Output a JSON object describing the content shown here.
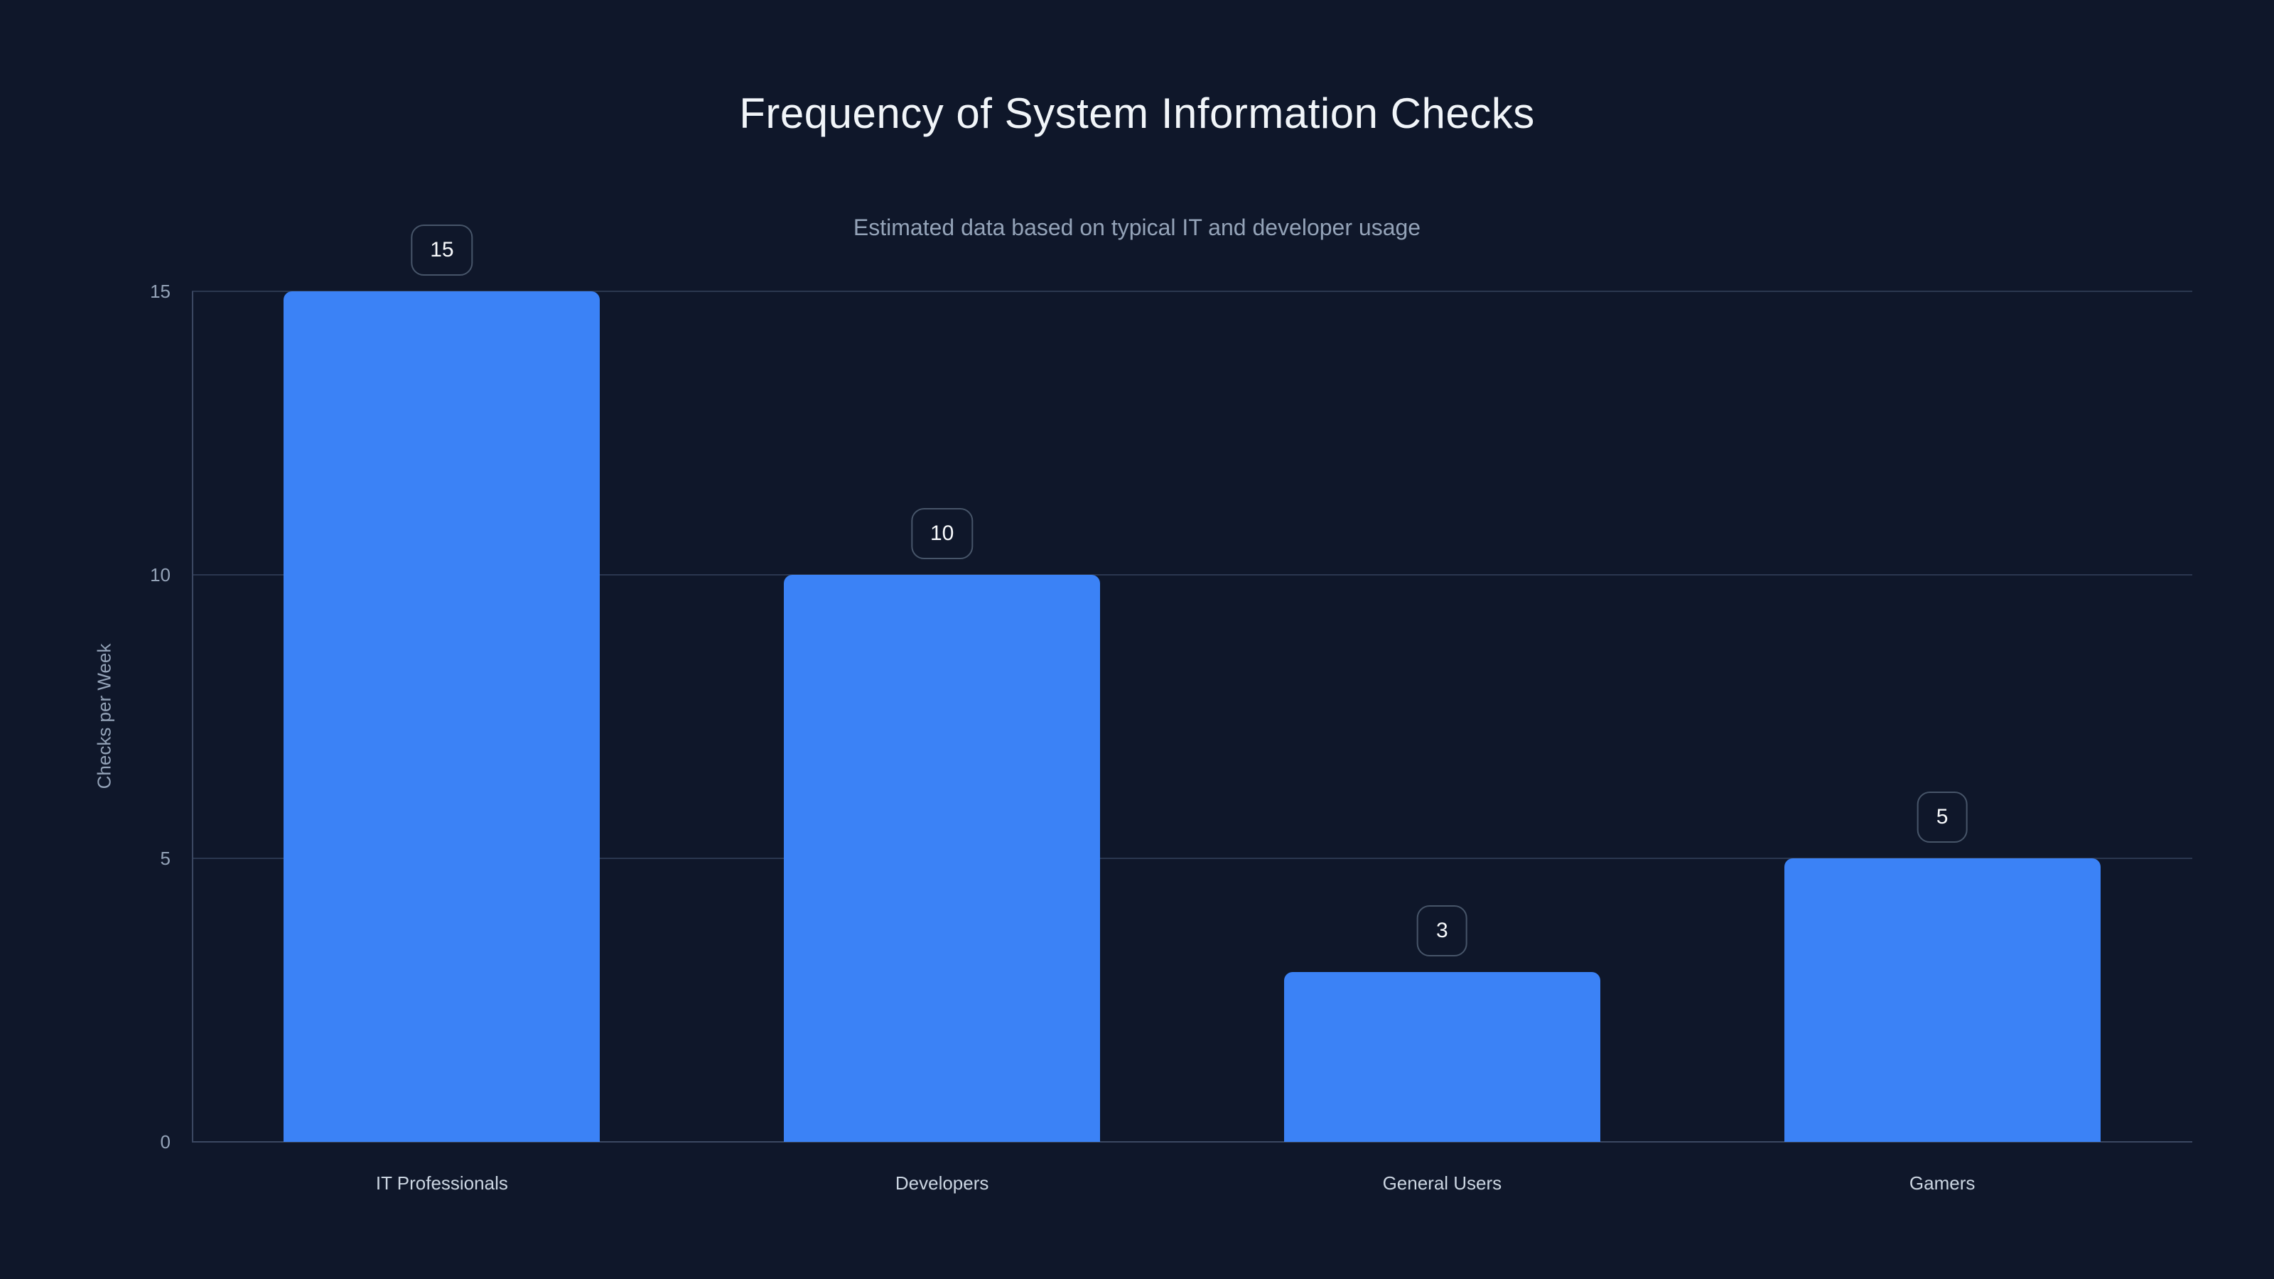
{
  "chart": {
    "title": "Frequency of System Information Checks",
    "subtitle": "Estimated data based on typical IT and developer usage"
  },
  "chart_data": {
    "type": "bar",
    "title": "Frequency of System Information Checks",
    "subtitle": "Estimated data based on typical IT and developer usage",
    "categories": [
      "IT Professionals",
      "Developers",
      "General Users",
      "Gamers"
    ],
    "values": [
      15,
      10,
      3,
      5
    ],
    "value_labels": [
      "15",
      "10",
      "3",
      "5"
    ],
    "xlabel": "",
    "ylabel": "Checks per Week",
    "ylim": [
      0,
      15
    ],
    "yticks": [
      0,
      5,
      10,
      15
    ],
    "grid": "horizontal-only",
    "legend": false,
    "colors": {
      "background": "#0f172a",
      "bar": "#3b82f6",
      "gridline": "#2b374f",
      "axis_line": "#3b4862",
      "y_tick_text": "#94a3b8",
      "x_tick_text": "#cbd5e1",
      "title_text": "#f1f5f9",
      "subtitle_text": "#94a3b8",
      "badge_border": "#475569",
      "badge_text": "#f8fafc"
    }
  }
}
